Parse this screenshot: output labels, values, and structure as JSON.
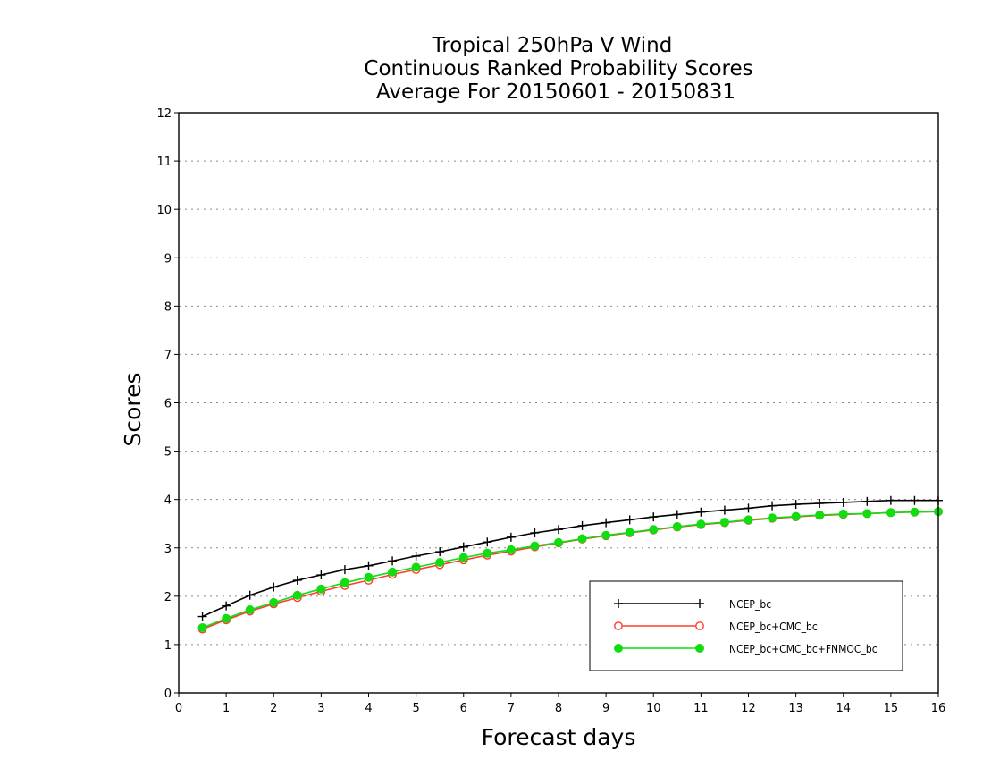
{
  "chart_data": {
    "type": "line",
    "title": [
      "Tropical 250hPa V Wind",
      "Continuous Ranked Probability Scores",
      "Average For 20150601 - 20150831"
    ],
    "xlabel": "Forecast days",
    "ylabel": "Scores",
    "xlim": [
      0,
      16
    ],
    "ylim": [
      0,
      12
    ],
    "xticks": [
      "0",
      "1",
      "2",
      "3",
      "4",
      "5",
      "6",
      "7",
      "8",
      "9",
      "10",
      "11",
      "12",
      "13",
      "14",
      "15",
      "16"
    ],
    "yticks": [
      "0",
      "1",
      "2",
      "3",
      "4",
      "5",
      "6",
      "7",
      "8",
      "9",
      "10",
      "11",
      "12"
    ],
    "grid": true,
    "legend_position": "bottom-right",
    "x": [
      0.5,
      1,
      1.5,
      2,
      2.5,
      3,
      3.5,
      4,
      4.5,
      5,
      5.5,
      6,
      6.5,
      7,
      7.5,
      8,
      8.5,
      9,
      9.5,
      10,
      10.5,
      11,
      11.5,
      12,
      12.5,
      13,
      13.5,
      14,
      14.5,
      15,
      15.5,
      16
    ],
    "series": [
      {
        "name": "NCEP_bc",
        "color": "#000000",
        "marker": "plus",
        "values": [
          1.58,
          1.8,
          2.02,
          2.19,
          2.33,
          2.44,
          2.55,
          2.63,
          2.73,
          2.83,
          2.92,
          3.02,
          3.12,
          3.22,
          3.31,
          3.38,
          3.46,
          3.52,
          3.58,
          3.64,
          3.69,
          3.74,
          3.78,
          3.82,
          3.87,
          3.9,
          3.92,
          3.94,
          3.96,
          3.98,
          3.98,
          3.98
        ]
      },
      {
        "name": "NCEP_bc+CMC_bc",
        "color": "#ff3b2f",
        "marker": "open-circle",
        "values": [
          1.32,
          1.51,
          1.69,
          1.84,
          1.97,
          2.1,
          2.22,
          2.33,
          2.45,
          2.55,
          2.65,
          2.75,
          2.85,
          2.93,
          3.02,
          3.1,
          3.18,
          3.25,
          3.31,
          3.37,
          3.43,
          3.48,
          3.52,
          3.57,
          3.61,
          3.64,
          3.67,
          3.69,
          3.71,
          3.73,
          3.74,
          3.75
        ]
      },
      {
        "name": "NCEP_bc+CMC_bc+FNMOC_bc",
        "color": "#11dd11",
        "marker": "filled-circle",
        "values": [
          1.35,
          1.54,
          1.72,
          1.87,
          2.02,
          2.15,
          2.28,
          2.39,
          2.5,
          2.6,
          2.7,
          2.8,
          2.89,
          2.96,
          3.04,
          3.11,
          3.19,
          3.26,
          3.32,
          3.38,
          3.44,
          3.49,
          3.53,
          3.58,
          3.62,
          3.65,
          3.68,
          3.7,
          3.71,
          3.73,
          3.74,
          3.75
        ]
      }
    ]
  }
}
